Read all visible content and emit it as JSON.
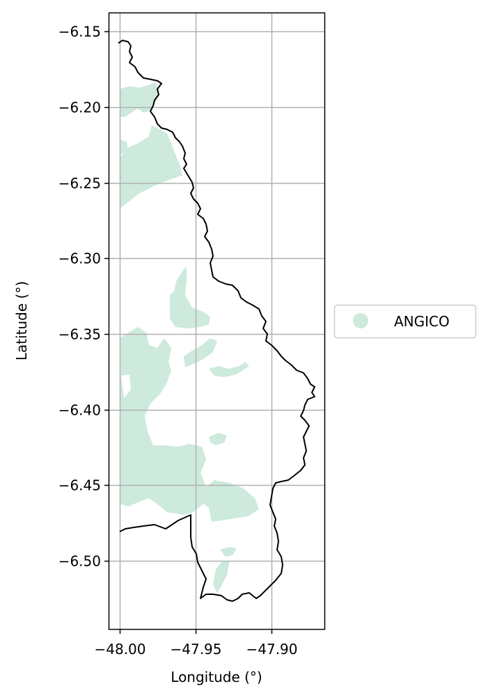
{
  "chart_data": {
    "type": "map",
    "title": "",
    "xlabel": "Longitude (°)",
    "ylabel": "Latitude (°)",
    "xlim": [
      -48.007,
      -47.865
    ],
    "ylim": [
      -6.545,
      -6.138
    ],
    "xticks": [
      -48.0,
      -47.95,
      -47.9
    ],
    "xtick_labels": [
      "−48.00",
      "−47.95",
      "−47.90"
    ],
    "yticks": [
      -6.15,
      -6.2,
      -6.25,
      -6.3,
      -6.35,
      -6.4,
      -6.45,
      -6.5
    ],
    "ytick_labels": [
      "−6.15",
      "−6.20",
      "−6.25",
      "−6.30",
      "−6.35",
      "−6.40",
      "−6.45",
      "−6.50"
    ],
    "grid": true,
    "legend": {
      "placement": "right",
      "entries": [
        {
          "label": "ANGICO",
          "color": "#cdeadc",
          "marker": "circle"
        }
      ]
    },
    "colors": {
      "region_fill": "#cdeadc",
      "boundary": "#000000",
      "grid": "#b0b0b0"
    }
  }
}
